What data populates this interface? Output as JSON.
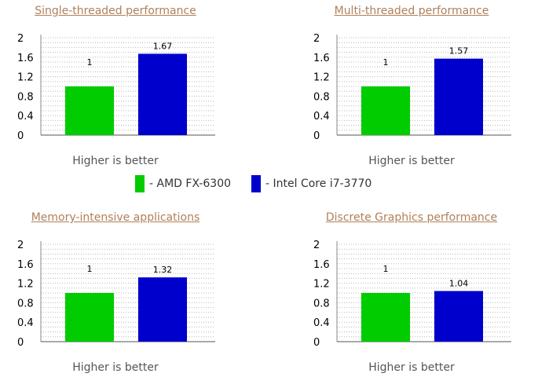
{
  "colors": {
    "series0": "#00cc00",
    "series1": "#0000cc",
    "title": "#b0805a"
  },
  "legend": [
    {
      "label": "- AMD FX-6300",
      "color": "#00cc00"
    },
    {
      "label": "- Intel Core i7-3770",
      "color": "#0000cc"
    }
  ],
  "chart_data": [
    {
      "type": "bar",
      "title": "Single-threaded performance",
      "footnote": "Higher is better",
      "categories": [
        "AMD FX-6300",
        "Intel Core i7-3770"
      ],
      "values": [
        1,
        1.67
      ],
      "value_labels": [
        "1",
        "1.67"
      ],
      "ylim": [
        0,
        2
      ],
      "yticks": [
        "0",
        "0.4",
        "0.8",
        "1.2",
        "1.6",
        "2"
      ],
      "grid": true
    },
    {
      "type": "bar",
      "title": "Multi-threaded performance",
      "footnote": "Higher is better",
      "categories": [
        "AMD FX-6300",
        "Intel Core i7-3770"
      ],
      "values": [
        1,
        1.57
      ],
      "value_labels": [
        "1",
        "1.57"
      ],
      "ylim": [
        0,
        2
      ],
      "yticks": [
        "0",
        "0.4",
        "0.8",
        "1.2",
        "1.6",
        "2"
      ],
      "grid": true
    },
    {
      "type": "bar",
      "title": "Memory-intensive applications",
      "footnote": "Higher is better",
      "categories": [
        "AMD FX-6300",
        "Intel Core i7-3770"
      ],
      "values": [
        1,
        1.32
      ],
      "value_labels": [
        "1",
        "1.32"
      ],
      "ylim": [
        0,
        2
      ],
      "yticks": [
        "0",
        "0.4",
        "0.8",
        "1.2",
        "1.6",
        "2"
      ],
      "grid": true
    },
    {
      "type": "bar",
      "title": "Discrete Graphics performance",
      "footnote": "Higher is better",
      "categories": [
        "AMD FX-6300",
        "Intel Core i7-3770"
      ],
      "values": [
        1,
        1.04
      ],
      "value_labels": [
        "1",
        "1.04"
      ],
      "ylim": [
        0,
        2
      ],
      "yticks": [
        "0",
        "0.4",
        "0.8",
        "1.2",
        "1.6",
        "2"
      ],
      "grid": true
    }
  ]
}
